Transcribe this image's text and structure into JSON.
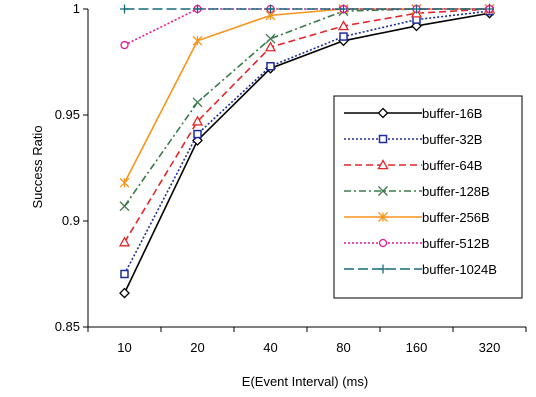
{
  "chart_data": {
    "type": "line",
    "xlabel": "E(Event Interval) (ms)",
    "ylabel": "Success Ratio",
    "categories": [
      "10",
      "20",
      "40",
      "80",
      "160",
      "320"
    ],
    "ylim": [
      0.85,
      1.0
    ],
    "yticks": [
      0.85,
      0.9,
      0.95,
      1.0
    ],
    "ytick_labels": [
      "0.85",
      "0.9",
      "0.95",
      "1"
    ],
    "grid": false,
    "legend_position": "right, lower-middle, boxed",
    "series": [
      {
        "name": "buffer-16B",
        "values": [
          0.866,
          0.938,
          0.972,
          0.985,
          0.992,
          0.998
        ],
        "color": "#000000",
        "dash": "solid",
        "marker": "diamond"
      },
      {
        "name": "buffer-32B",
        "values": [
          0.875,
          0.941,
          0.973,
          0.987,
          0.995,
          0.999
        ],
        "color": "#1f2d9c",
        "dash": "dotted",
        "marker": "square"
      },
      {
        "name": "buffer-64B",
        "values": [
          0.89,
          0.947,
          0.982,
          0.992,
          0.998,
          1.0
        ],
        "color": "#e4262a",
        "dash": "dashed",
        "marker": "triangle"
      },
      {
        "name": "buffer-128B",
        "values": [
          0.907,
          0.956,
          0.986,
          0.999,
          1.0,
          1.0
        ],
        "color": "#3a7a4a",
        "dash": "dashdot",
        "marker": "x"
      },
      {
        "name": "buffer-256B",
        "values": [
          0.918,
          0.985,
          0.997,
          1.0,
          1.0,
          1.0
        ],
        "color": "#f7941d",
        "dash": "solid",
        "marker": "star"
      },
      {
        "name": "buffer-512B",
        "values": [
          0.983,
          1.0,
          1.0,
          1.0,
          1.0,
          1.0
        ],
        "color": "#e6179a",
        "dash": "dotted",
        "marker": "circle"
      },
      {
        "name": "buffer-1024B",
        "values": [
          1.0,
          1.0,
          1.0,
          1.0,
          1.0,
          1.0
        ],
        "color": "#156a7a",
        "dash": "longdash",
        "marker": "plus"
      }
    ]
  }
}
